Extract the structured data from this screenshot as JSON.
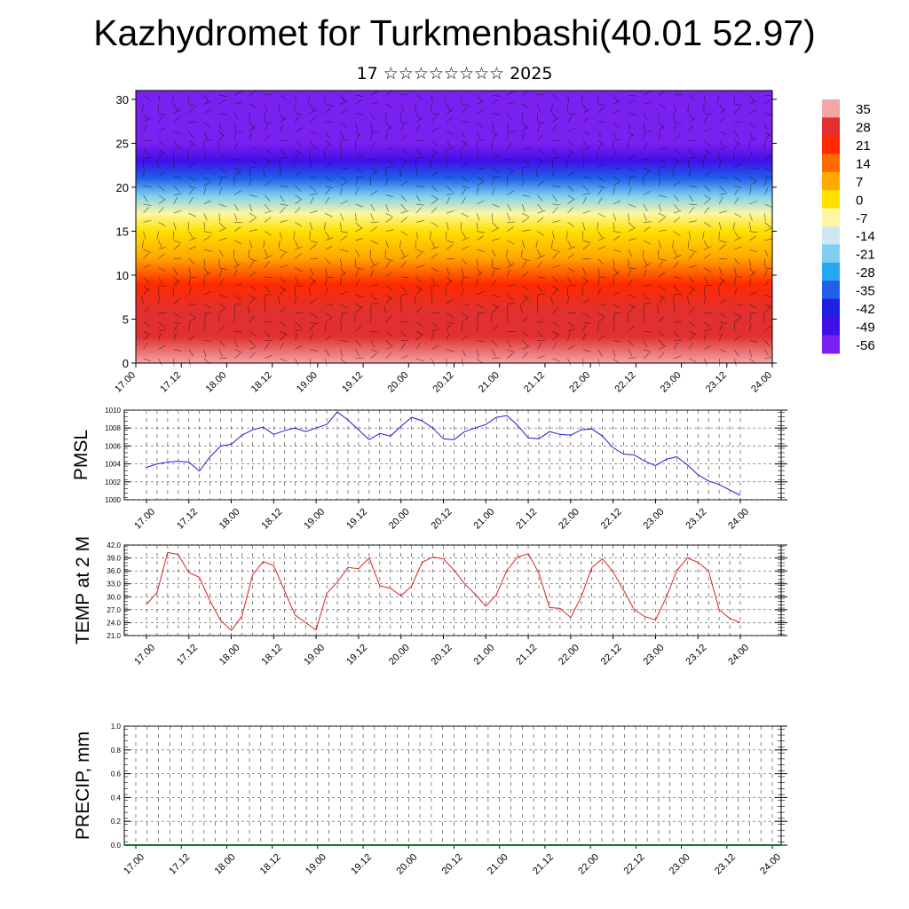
{
  "header": {
    "title": "Kazhydromet for Turkmenbashi(40.01 52.97)",
    "subtitle": "17 ☆☆☆☆☆☆☆☆ 2025"
  },
  "colorbar": {
    "labels": [
      "35",
      "28",
      "21",
      "14",
      "7",
      "0",
      "-7",
      "-14",
      "-21",
      "-28",
      "-35",
      "-42",
      "-49",
      "-56"
    ],
    "colors": [
      "#f2a6a6",
      "#e23030",
      "#ff2a00",
      "#ff6a00",
      "#ffa800",
      "#ffe000",
      "#fff6a0",
      "#cfe8f0",
      "#7fd0f0",
      "#28a8f0",
      "#2060e8",
      "#2020e0",
      "#4010e8",
      "#7a20f0"
    ]
  },
  "chart_data": [
    {
      "type": "heatmap",
      "title": "",
      "xlabel": "",
      "ylabel": "",
      "x_ticks": [
        "17.00",
        "17.12",
        "18.00",
        "18.12",
        "19.00",
        "19.12",
        "20.00",
        "20.12",
        "21.00",
        "21.12",
        "22.00",
        "22.12",
        "23.00",
        "23.12",
        "24.00"
      ],
      "y_ticks": [
        "0",
        "5",
        "10",
        "15",
        "20",
        "25",
        "30"
      ],
      "ylim": [
        0,
        31
      ],
      "colorscale_range": [
        -56,
        35
      ],
      "z_profile": {
        "levels": [
          0,
          3,
          6,
          9,
          12,
          15,
          17,
          19,
          21,
          23,
          25,
          27,
          31
        ],
        "values": [
          33,
          28,
          26,
          21,
          10,
          0,
          -7,
          -21,
          -35,
          -49,
          -56,
          -56,
          -56
        ]
      },
      "overlay": "wind barbs"
    },
    {
      "type": "line",
      "title": "",
      "ylabel": "PMSL",
      "x_ticks": [
        "17.00",
        "17.12",
        "18.00",
        "18.12",
        "19.00",
        "19.12",
        "20.00",
        "20.12",
        "21.00",
        "21.12",
        "22.00",
        "22.12",
        "23.00",
        "23.12",
        "24.00"
      ],
      "y_ticks": [
        "1000",
        "1002",
        "1004",
        "1006",
        "1008",
        "1010"
      ],
      "ylim": [
        1000,
        1010
      ],
      "color": "#1a1ad6",
      "series": [
        {
          "values": [
            1003.6,
            1004.0,
            1004.2,
            1004.3,
            1004.2,
            1003.2,
            1004.8,
            1006.0,
            1006.2,
            1007.2,
            1007.8,
            1008.1,
            1007.3,
            1007.7,
            1008.0,
            1007.6,
            1008.0,
            1008.4,
            1009.8,
            1008.9,
            1007.8,
            1006.7,
            1007.4,
            1007.1,
            1008.2,
            1009.2,
            1008.8,
            1008.0,
            1006.8,
            1006.7,
            1007.6,
            1008.0,
            1008.4,
            1009.2,
            1009.4,
            1008.3,
            1006.9,
            1006.8,
            1007.6,
            1007.3,
            1007.2,
            1007.8,
            1007.9,
            1007.1,
            1005.8,
            1005.1,
            1005.0,
            1004.3,
            1003.8,
            1004.5,
            1004.8,
            1003.9,
            1002.8,
            1002.1,
            1001.7,
            1001.1,
            1000.5
          ]
        }
      ]
    },
    {
      "type": "line",
      "title": "",
      "ylabel": "TEMP at 2 M",
      "x_ticks": [
        "17.00",
        "17.12",
        "18.00",
        "18.12",
        "19.00",
        "19.12",
        "20.00",
        "20.12",
        "21.00",
        "21.12",
        "22.00",
        "22.12",
        "23.00",
        "23.12",
        "24.00"
      ],
      "y_ticks": [
        "21.0",
        "24.0",
        "27.0",
        "30.0",
        "33.0",
        "36.0",
        "39.0",
        "42.0"
      ],
      "ylim": [
        21,
        42
      ],
      "color": "#e02020",
      "series": [
        {
          "values": [
            28.2,
            31.0,
            40.3,
            39.8,
            35.6,
            34.5,
            29.0,
            24.5,
            22.2,
            25.5,
            35.0,
            38.2,
            37.2,
            31.5,
            25.8,
            24.0,
            22.3,
            30.8,
            33.4,
            36.8,
            36.5,
            39.0,
            32.6,
            32.0,
            30.2,
            32.5,
            38.0,
            39.2,
            38.8,
            36.2,
            33.0,
            30.6,
            27.8,
            30.5,
            36.2,
            39.2,
            40.0,
            35.5,
            27.5,
            27.3,
            25.2,
            30.0,
            36.8,
            38.8,
            35.8,
            31.5,
            27.0,
            25.4,
            24.6,
            29.8,
            36.0,
            39.0,
            38.0,
            36.0,
            27.0,
            25.0,
            24.0
          ]
        }
      ]
    },
    {
      "type": "bar",
      "title": "",
      "ylabel": "PRECIP, mm",
      "x_ticks": [
        "17.00",
        "17.12",
        "18.00",
        "18.12",
        "19.00",
        "19.12",
        "20.00",
        "20.12",
        "21.00",
        "21.12",
        "22.00",
        "22.12",
        "23.00",
        "23.12",
        "24.00"
      ],
      "y_ticks": [
        "0.0",
        "0.2",
        "0.4",
        "0.6",
        "0.8",
        "1.0"
      ],
      "ylim": [
        0,
        1
      ],
      "color": "#0a7a3a",
      "series": [
        {
          "values": [
            0,
            0,
            0,
            0,
            0,
            0,
            0,
            0,
            0,
            0,
            0,
            0,
            0,
            0,
            0,
            0,
            0,
            0,
            0,
            0,
            0,
            0,
            0,
            0,
            0,
            0,
            0,
            0,
            0,
            0,
            0,
            0,
            0,
            0,
            0,
            0,
            0,
            0,
            0,
            0,
            0,
            0,
            0,
            0,
            0,
            0,
            0,
            0,
            0,
            0,
            0,
            0,
            0,
            0,
            0,
            0,
            0
          ]
        }
      ]
    }
  ]
}
